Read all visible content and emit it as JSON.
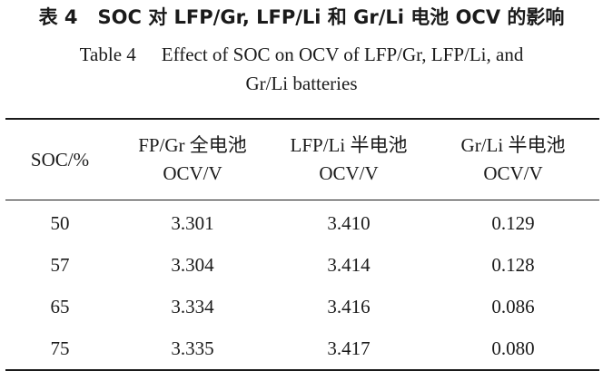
{
  "caption": {
    "cn_tag": "表 4",
    "cn_title": "SOC 对 LFP/Gr, LFP/Li 和 Gr/Li 电池 OCV 的影响",
    "en_tag": "Table 4",
    "en_title_line1": "Effect of SOC on OCV of LFP/Gr, LFP/Li, and",
    "en_title_line2": "Gr/Li batteries"
  },
  "table": {
    "headers": [
      {
        "top": "SOC/%",
        "bottom": ""
      },
      {
        "top": "FP/Gr 全电池",
        "bottom": "OCV/V"
      },
      {
        "top": "LFP/Li 半电池",
        "bottom": "OCV/V"
      },
      {
        "top": "Gr/Li 半电池",
        "bottom": "OCV/V"
      }
    ],
    "rows": [
      [
        "50",
        "3.301",
        "3.410",
        "0.129"
      ],
      [
        "57",
        "3.304",
        "3.414",
        "0.128"
      ],
      [
        "65",
        "3.334",
        "3.416",
        "0.086"
      ],
      [
        "75",
        "3.335",
        "3.417",
        "0.080"
      ]
    ]
  }
}
